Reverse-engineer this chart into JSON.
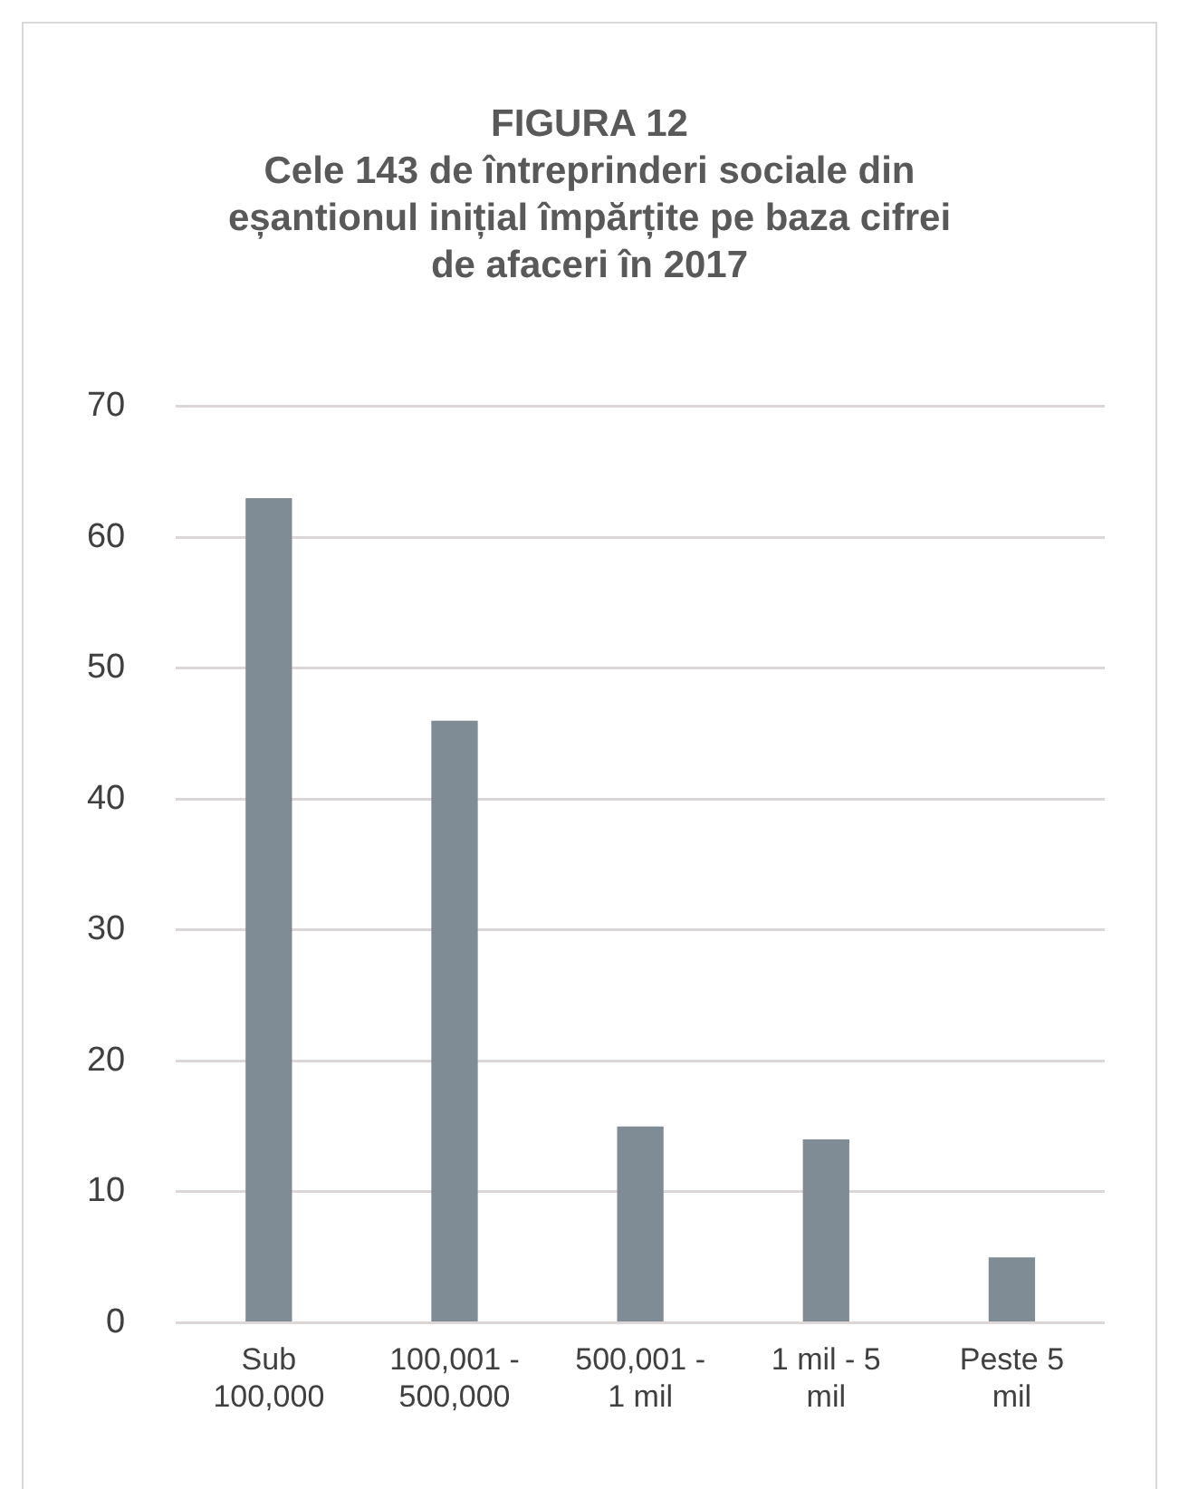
{
  "chart_data": {
    "type": "bar",
    "title": "FIGURA 12",
    "subtitle": "Cele 143 de întreprinderi sociale din eșantionul inițial împărțite pe baza cifrei de afaceri în 2017",
    "categories": [
      "Sub 100,000",
      "100,001 - 500,000",
      "500,001 - 1 mil",
      "1 mil - 5 mil",
      "Peste 5 mil"
    ],
    "values": [
      63,
      46,
      15,
      14,
      5
    ],
    "color": "#7f8c96",
    "ylim": [
      0,
      70
    ],
    "yticks": [
      0,
      10,
      20,
      30,
      40,
      50,
      60,
      70
    ],
    "grid": "y",
    "legend": false
  }
}
